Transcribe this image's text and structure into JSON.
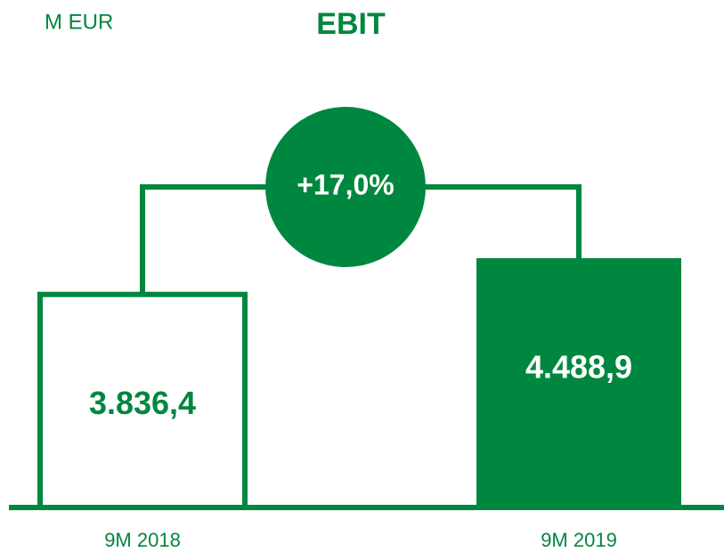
{
  "chart_data": {
    "type": "bar",
    "title": "EBIT",
    "unit_label": "M EUR",
    "categories": [
      "9M 2018",
      "9M 2019"
    ],
    "values": [
      3836.4,
      4488.9
    ],
    "value_labels": [
      "3.836,4",
      "4.488,9"
    ],
    "annotation": "+17,0%",
    "color": "#00873f"
  }
}
